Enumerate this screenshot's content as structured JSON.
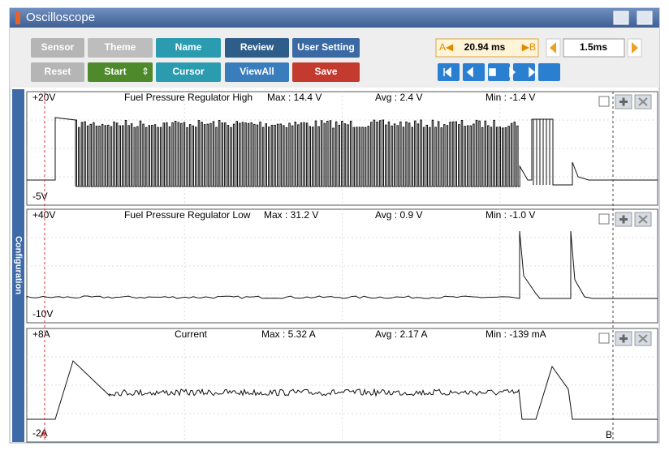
{
  "window": {
    "title": "Oscilloscope"
  },
  "toolbar": {
    "buttons": [
      "Sensor",
      "Theme",
      "Name",
      "Review",
      "User Setting",
      "Reset",
      "Start",
      "Cursor",
      "ViewAll",
      "Save"
    ],
    "time": {
      "a_marker": "A◀",
      "value": "20.94 ms",
      "b_marker": "▶B",
      "scale": "1.5ms"
    }
  },
  "sidebar": {
    "label": "Configuration"
  },
  "channels": [
    {
      "top": "+20V",
      "bottom": "-5V",
      "name": "Fuel Pressure Regulator High",
      "max": "Max : 14.4 V",
      "avg": "Avg : 2.4 V",
      "min": "Min : -1.4 V"
    },
    {
      "top": "+40V",
      "bottom": "-10V",
      "name": "Fuel Pressure Regulator Low",
      "max": "Max : 31.2 V",
      "avg": "Avg : 0.9 V",
      "min": "Min : -1.0 V"
    },
    {
      "top": "+8A",
      "bottom": "-2A",
      "name": "Current",
      "max": "Max : 5.32 A",
      "avg": "Avg : 2.17 A",
      "min": "Min : -139 mA"
    }
  ],
  "cursors": {
    "a": "A",
    "b": "B"
  }
}
